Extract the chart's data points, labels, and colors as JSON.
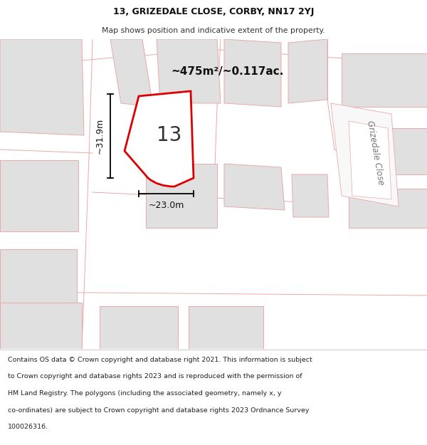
{
  "title_line1": "13, GRIZEDALE CLOSE, CORBY, NN17 2YJ",
  "title_line2": "Map shows position and indicative extent of the property.",
  "area_label": "~475m²/~0.117ac.",
  "number_label": "13",
  "dim_width": "~23.0m",
  "dim_height": "~31.9m",
  "street_label": "Grizedale Close",
  "footer_lines": [
    "Contains OS data © Crown copyright and database right 2021. This information is subject",
    "to Crown copyright and database rights 2023 and is reproduced with the permission of",
    "HM Land Registry. The polygons (including the associated geometry, namely x, y",
    "co-ordinates) are subject to Crown copyright and database rights 2023 Ordnance Survey",
    "100026316."
  ],
  "map_bg": "#ffffff",
  "plot_fill": "#ffffff",
  "plot_border": "#dd0000",
  "block_fill": "#e0e0e0",
  "road_line": "#e8aaaa",
  "footer_bg": "#ffffff",
  "title_bg": "#ffffff",
  "separator_color": "#cccccc"
}
